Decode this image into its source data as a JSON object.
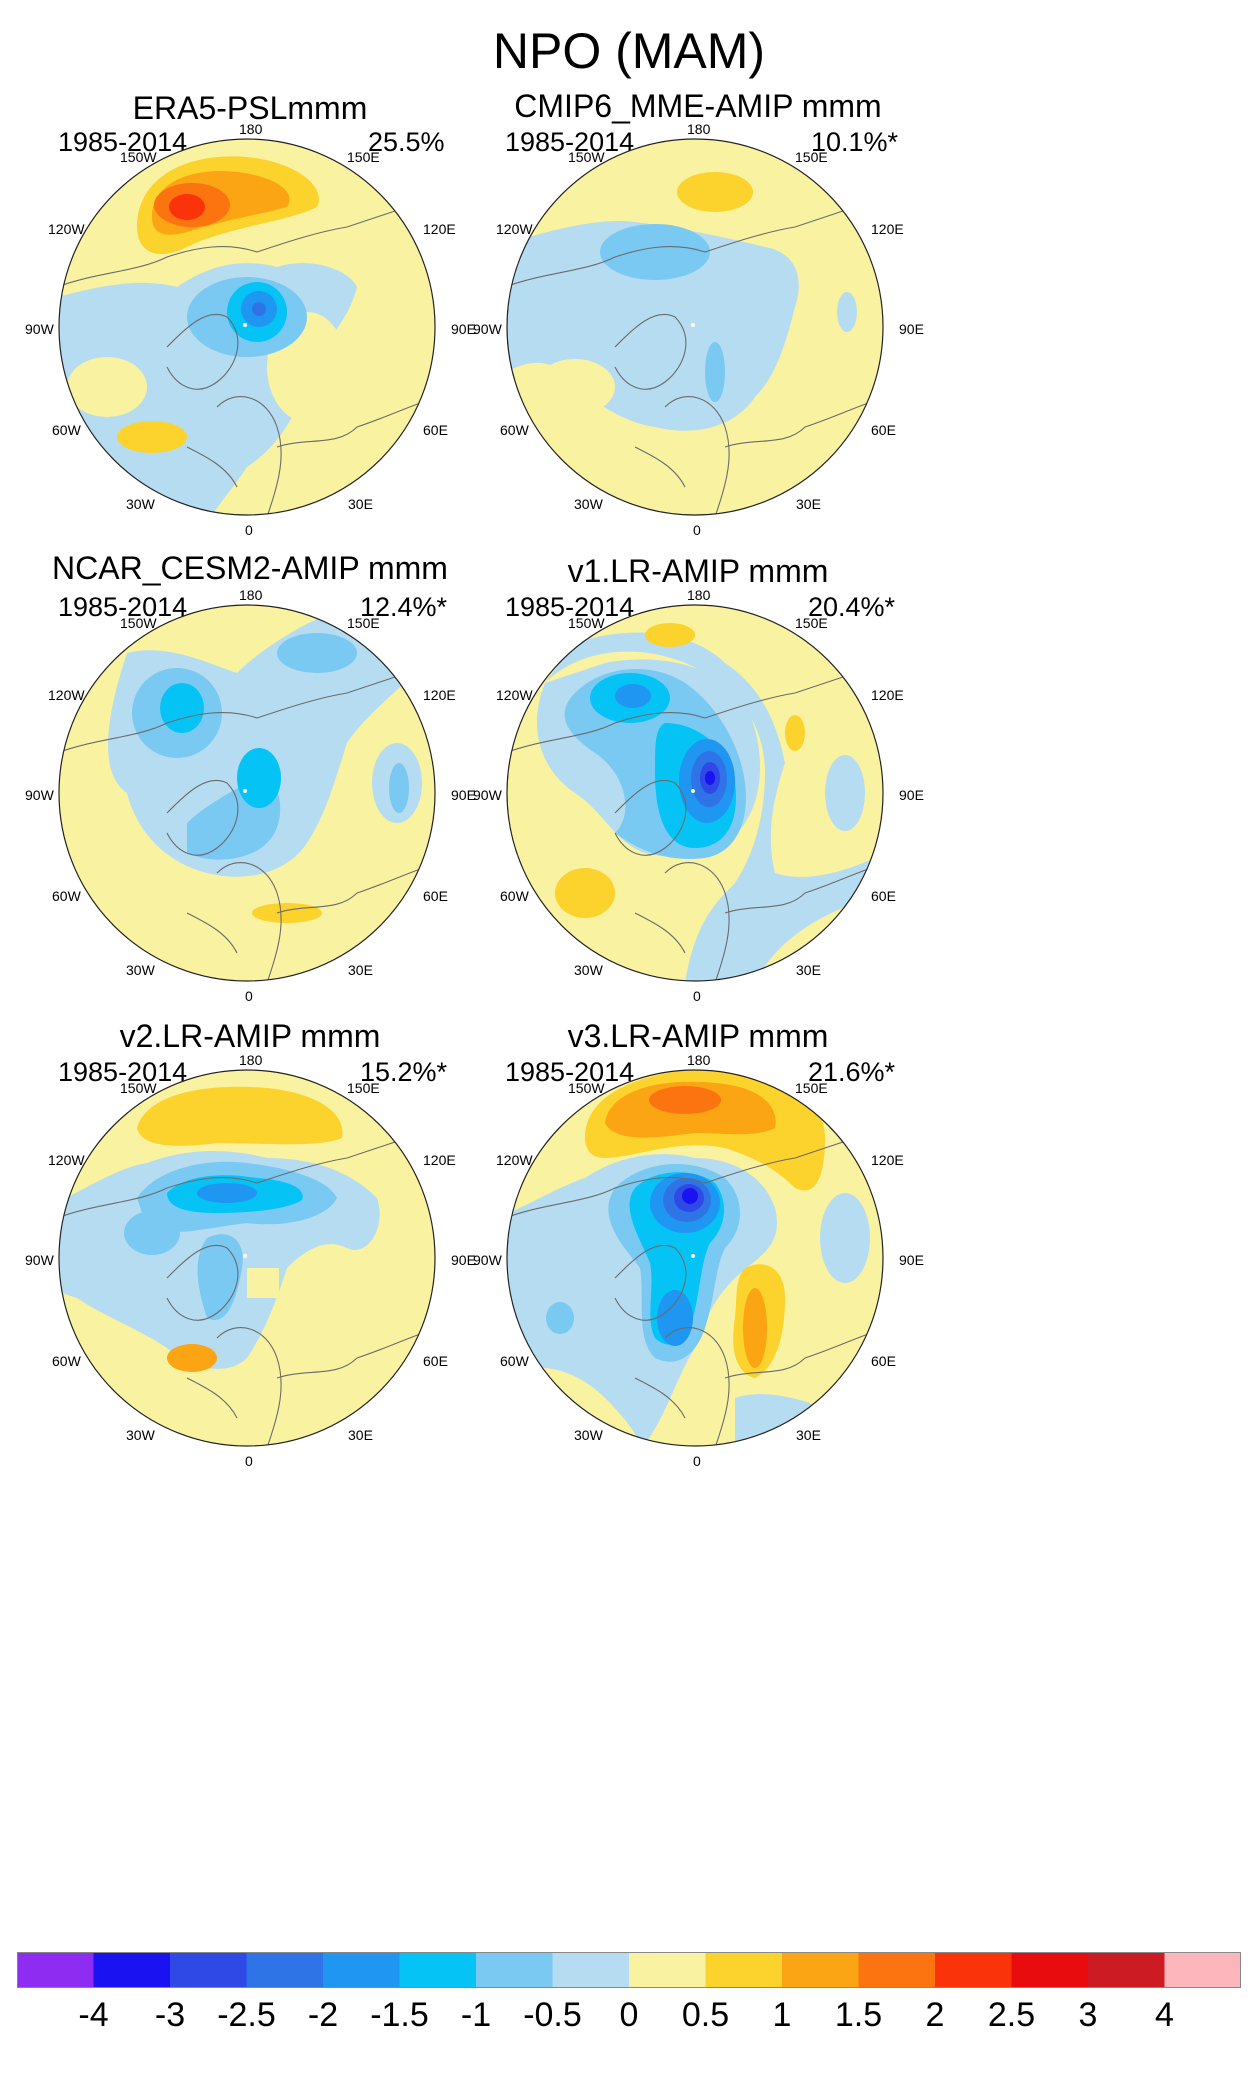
{
  "figure_title": "NPO (MAM)",
  "colors": {
    "background_field": "#f9f2a1",
    "coastline": "#6b6b6b",
    "circle_border": "#222222"
  },
  "longitude_labels": {
    "top": "180",
    "top_left": "150W",
    "top_right": "150E",
    "left_upper": "120W",
    "right_upper": "120E",
    "left_mid": "90W",
    "right_mid": "90E",
    "left_lower": "60W",
    "right_lower": "60E",
    "bottom_left": "30W",
    "bottom_right": "30E",
    "bottom": "0"
  },
  "panels": [
    {
      "title": "ERA5-PSLmmm",
      "period": "1985-2014",
      "variance": "25.5%"
    },
    {
      "title": "CMIP6_MME-AMIP  mmm",
      "period": "1985-2014",
      "variance": "10.1%*"
    },
    {
      "title": "NCAR_CESM2-AMIP  mmm",
      "period": "1985-2014",
      "variance": "12.4%*"
    },
    {
      "title": "v1.LR-AMIP  mmm",
      "period": "1985-2014",
      "variance": "20.4%*"
    },
    {
      "title": "v2.LR-AMIP  mmm",
      "period": "1985-2014",
      "variance": "15.2%*"
    },
    {
      "title": "v3.LR-AMIP  mmm",
      "period": "1985-2014",
      "variance": "21.6%*"
    }
  ],
  "colorbar": {
    "labels": [
      "-4",
      "-3",
      "-2.5",
      "-2",
      "-1.5",
      "-1",
      "-0.5",
      "0",
      "0.5",
      "1",
      "1.5",
      "2",
      "2.5",
      "3",
      "4"
    ],
    "colors": [
      "#8f2cf2",
      "#1a12f0",
      "#2f49e6",
      "#2f74e6",
      "#1f96f2",
      "#06c3f5",
      "#7ac9f2",
      "#b6dcf1",
      "#f9f2a1",
      "#fcd22c",
      "#fba414",
      "#fb7410",
      "#fb330b",
      "#e80c0e",
      "#cc1b22",
      "#fdb7bc"
    ]
  }
}
